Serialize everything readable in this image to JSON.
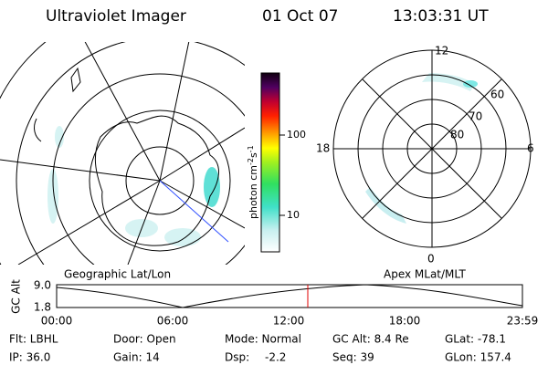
{
  "header": {
    "title": "Ultraviolet Imager",
    "date": "01 Oct 07",
    "time": "13:03:31 UT"
  },
  "colorbar": {
    "ticks": [
      "100",
      "10"
    ],
    "label": {
      "base": "photon cm",
      "exp1": "-2",
      "unit2": "s",
      "exp2": "-1"
    }
  },
  "polar": {
    "mlt": {
      "top": "12",
      "left": "18",
      "right": "6",
      "bottom": "0"
    },
    "mlat": [
      "60",
      "70",
      "80"
    ]
  },
  "orbit": {
    "left_title": "Geographic Lat/Lon",
    "right_title": "Apex MLat/MLT",
    "axis_label": "GC Alt",
    "ytop": "9.0",
    "ybottom": "1.8",
    "times": [
      "00:00",
      "06:00",
      "12:00",
      "18:00",
      "23:59"
    ]
  },
  "info": {
    "rows": [
      [
        "Flt: LBHL",
        "Door: Open",
        "Mode: Normal",
        "GC Alt: 8.4 Re",
        "GLat: -78.1"
      ],
      [
        "IP: 36.0",
        "Gain: 14",
        "Dsp:",
        "Seq: 39",
        "GLon: 157.4"
      ]
    ],
    "dsp_value": "-2.2"
  }
}
